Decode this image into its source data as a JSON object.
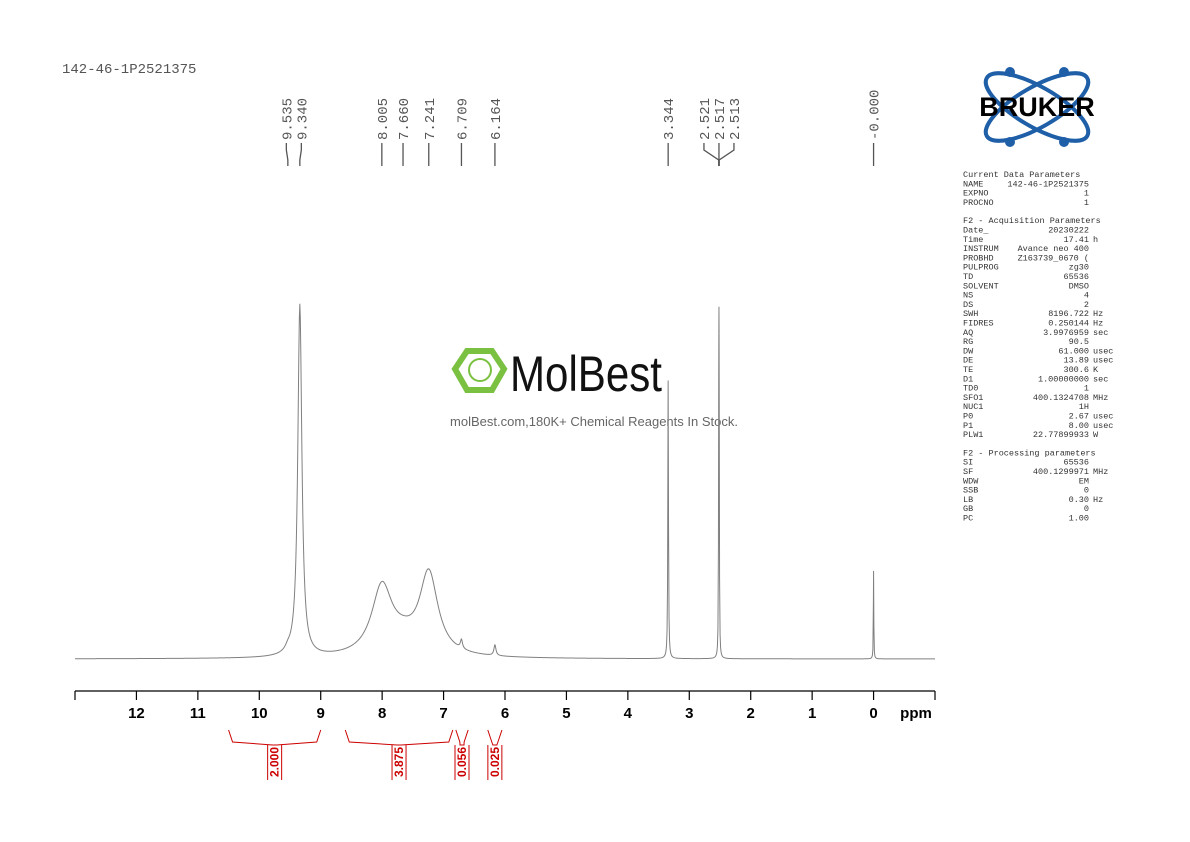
{
  "header": {
    "sample": "142-46-1P2521375"
  },
  "watermark": {
    "brand": "MolBest",
    "tagline": "molBest.com,180K+ Chemical Reagents In Stock."
  },
  "logo": {
    "text": "BRUKER"
  },
  "parameters": [
    {
      "title": "Current Data Parameters",
      "rows": [
        [
          "NAME",
          "142-46-1P2521375"
        ],
        [
          "EXPNO",
          "1"
        ],
        [
          "PROCNO",
          "1"
        ]
      ]
    },
    {
      "title": "F2 - Acquisition Parameters",
      "rows": [
        [
          "Date_",
          "20230222"
        ],
        [
          "Time",
          "17.41",
          "h"
        ],
        [
          "INSTRUM",
          "Avance neo 400"
        ],
        [
          "PROBHD",
          "Z163739_0670 ("
        ],
        [
          "PULPROG",
          "zg30"
        ],
        [
          "TD",
          "65536"
        ],
        [
          "SOLVENT",
          "DMSO"
        ],
        [
          "NS",
          "4"
        ],
        [
          "DS",
          "2"
        ],
        [
          "SWH",
          "8196.722",
          "Hz"
        ],
        [
          "FIDRES",
          "0.250144",
          "Hz"
        ],
        [
          "AQ",
          "3.9976959",
          "sec"
        ],
        [
          "RG",
          "90.5"
        ],
        [
          "DW",
          "61.000",
          "usec"
        ],
        [
          "DE",
          "13.89",
          "usec"
        ],
        [
          "TE",
          "300.6",
          "K"
        ],
        [
          "D1",
          "1.00000000",
          "sec"
        ],
        [
          "TD0",
          "1"
        ],
        [
          "SFO1",
          "400.1324708",
          "MHz"
        ],
        [
          "NUC1",
          "1H"
        ],
        [
          "P0",
          "2.67",
          "usec"
        ],
        [
          "P1",
          "8.00",
          "usec"
        ],
        [
          "PLW1",
          "22.77899933",
          "W"
        ]
      ]
    },
    {
      "title": "F2 - Processing parameters",
      "rows": [
        [
          "SI",
          "65536"
        ],
        [
          "SF",
          "400.1299971",
          "MHz"
        ],
        [
          "WDW",
          "EM"
        ],
        [
          "SSB",
          "0"
        ],
        [
          "LB",
          "0.30",
          "Hz"
        ],
        [
          "GB",
          "0"
        ],
        [
          "PC",
          "1.00"
        ]
      ]
    }
  ],
  "chart_data": {
    "type": "nmr",
    "x_label": "ppm",
    "xlim": [
      13,
      -1
    ],
    "xticks": [
      12,
      11,
      10,
      9,
      8,
      7,
      6,
      5,
      4,
      3,
      2,
      1,
      0
    ],
    "ylim": [
      0,
      100
    ],
    "color": "#808080",
    "peaks": [
      {
        "ppm": 9.535,
        "height": 1,
        "width": 0.05
      },
      {
        "ppm": 9.34,
        "height": 100,
        "width": 0.04
      },
      {
        "ppm": 8.005,
        "height": 19,
        "width": 0.2
      },
      {
        "ppm": 7.66,
        "height": 4,
        "width": 0.3
      },
      {
        "ppm": 7.241,
        "height": 23,
        "width": 0.18
      },
      {
        "ppm": 6.709,
        "height": 2.5,
        "width": 0.02
      },
      {
        "ppm": 6.164,
        "height": 3,
        "width": 0.02
      },
      {
        "ppm": 3.344,
        "height": 79,
        "width": 0.006
      },
      {
        "ppm": 2.521,
        "height": 40,
        "width": 0.004
      },
      {
        "ppm": 2.517,
        "height": 60,
        "width": 0.004
      },
      {
        "ppm": 2.513,
        "height": 40,
        "width": 0.004
      },
      {
        "ppm": 0,
        "height": 25,
        "width": 0.004
      }
    ],
    "peak_labels": [
      {
        "value": 9.535,
        "label": "9.535"
      },
      {
        "value": 9.34,
        "label": "9.340"
      },
      {
        "value": 8.005,
        "label": "8.005"
      },
      {
        "value": 7.66,
        "label": "7.660"
      },
      {
        "value": 7.241,
        "label": "7.241"
      },
      {
        "value": 6.709,
        "label": "6.709"
      },
      {
        "value": 6.164,
        "label": "6.164"
      },
      {
        "value": 3.344,
        "label": "3.344"
      },
      {
        "value": 2.521,
        "label": "2.521"
      },
      {
        "value": 2.517,
        "label": "2.517"
      },
      {
        "value": 2.513,
        "label": "2.513"
      },
      {
        "value": 0,
        "label": "-0.000"
      }
    ],
    "integrals": [
      {
        "range": [
          10.5,
          9.0
        ],
        "value": 2,
        "label": "2.000"
      },
      {
        "range": [
          8.6,
          6.85
        ],
        "value": 3.875,
        "label": "3.875"
      },
      {
        "range": [
          6.8,
          6.6
        ],
        "value": 0.056,
        "label": "0.056"
      },
      {
        "range": [
          6.28,
          6.05
        ],
        "value": 0.025,
        "label": "0.025"
      }
    ]
  }
}
